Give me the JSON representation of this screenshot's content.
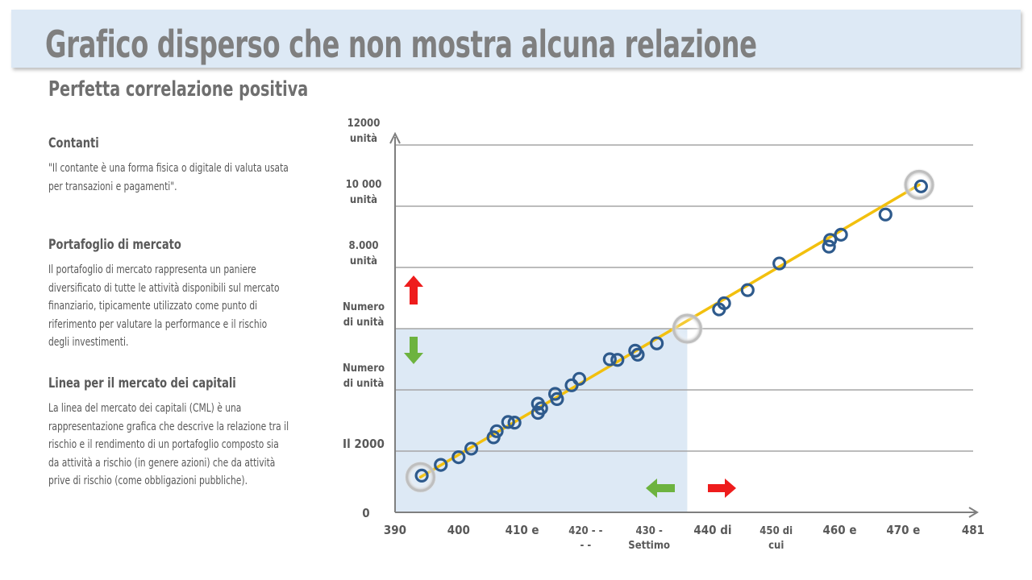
{
  "header": {
    "title": "Grafico disperso che non mostra alcuna relazione",
    "subtitle": "Perfetta correlazione positiva"
  },
  "sections": [
    {
      "heading": "Contanti",
      "body": "\"Il contante è una forma fisica o digitale di valuta usata per transazioni e pagamenti\"."
    },
    {
      "heading": "Portafoglio di mercato",
      "body": "Il portafoglio di mercato rappresenta un paniere diversificato di tutte le attività disponibili sul mercato finanziario, tipicamente utilizzato come punto di riferimento per valutare la performance e il rischio degli investimenti."
    },
    {
      "heading": "Linea per il mercato dei capitali",
      "body": "La linea del mercato dei capitali (CML) è una rappresentazione grafica che descrive la relazione tra il rischio e il rendimento di un portafoglio composto sia da attività a rischio (in genere azioni) che da attività prive di rischio (come obbligazioni pubbliche)."
    }
  ],
  "colors": {
    "line": "#f2c00e",
    "marker": "#2e5a8c",
    "grid": "#a6a6a6",
    "axis": "#7f7f7f",
    "shade": "#dde9f5",
    "arrow_up": "#ee1c1c",
    "arrow_down": "#6db33f",
    "arrow_left": "#6db33f",
    "arrow_right": "#ee1c1c"
  },
  "chart_data": {
    "type": "scatter",
    "xlim": [
      390,
      481
    ],
    "ylim": [
      0,
      12000
    ],
    "grid": "horizontal",
    "x_ticks": [
      {
        "value": 390,
        "label": [
          "390"
        ]
      },
      {
        "value": 400,
        "label": [
          "400"
        ]
      },
      {
        "value": 410,
        "label": [
          "410 e"
        ]
      },
      {
        "value": 420,
        "label": [
          "420 - -",
          "- -"
        ]
      },
      {
        "value": 430,
        "label": [
          "430 -",
          "Settimo"
        ]
      },
      {
        "value": 440,
        "label": [
          "440 di"
        ]
      },
      {
        "value": 450,
        "label": [
          "450 di",
          "cui"
        ]
      },
      {
        "value": 460,
        "label": [
          "460 e"
        ]
      },
      {
        "value": 470,
        "label": [
          "470 e"
        ]
      },
      {
        "value": 481,
        "label": [
          "481"
        ]
      }
    ],
    "y_ticks": [
      {
        "value": 0,
        "label": [
          "0"
        ]
      },
      {
        "value": 2000,
        "label": [
          "Il 2000"
        ]
      },
      {
        "value": 4000,
        "label": [
          "Numero",
          "di unità"
        ]
      },
      {
        "value": 6000,
        "label": [
          "Numero",
          "di unità"
        ]
      },
      {
        "value": 8000,
        "label": [
          "8.000",
          "unità"
        ]
      },
      {
        "value": 10000,
        "label": [
          "10 000",
          "unità"
        ]
      },
      {
        "value": 12000,
        "label": [
          "12000",
          "unità"
        ]
      }
    ],
    "trend_line": {
      "x": [
        394,
        472.5
      ],
      "y": [
        1150,
        10700
      ]
    },
    "highlighted_points": [
      {
        "x": 394,
        "y": 1150
      },
      {
        "x": 436,
        "y": 6000
      },
      {
        "x": 472.5,
        "y": 10700
      }
    ],
    "shaded_region": {
      "x": [
        390,
        436
      ],
      "y": [
        0,
        6000
      ]
    },
    "points": [
      {
        "x": 394.2,
        "y": 1200
      },
      {
        "x": 397.2,
        "y": 1550
      },
      {
        "x": 400.0,
        "y": 1800
      },
      {
        "x": 402.0,
        "y": 2080
      },
      {
        "x": 405.5,
        "y": 2450
      },
      {
        "x": 406.0,
        "y": 2650
      },
      {
        "x": 407.8,
        "y": 2950
      },
      {
        "x": 408.8,
        "y": 2930
      },
      {
        "x": 412.5,
        "y": 3250
      },
      {
        "x": 412.5,
        "y": 3550
      },
      {
        "x": 413.0,
        "y": 3400
      },
      {
        "x": 415.2,
        "y": 3870
      },
      {
        "x": 415.5,
        "y": 3700
      },
      {
        "x": 417.8,
        "y": 4150
      },
      {
        "x": 419.0,
        "y": 4360
      },
      {
        "x": 423.8,
        "y": 5000
      },
      {
        "x": 425.0,
        "y": 4980
      },
      {
        "x": 427.8,
        "y": 5280
      },
      {
        "x": 428.2,
        "y": 5150
      },
      {
        "x": 431.2,
        "y": 5520
      },
      {
        "x": 441.0,
        "y": 6630
      },
      {
        "x": 441.8,
        "y": 6830
      },
      {
        "x": 445.5,
        "y": 7260
      },
      {
        "x": 450.5,
        "y": 8130
      },
      {
        "x": 458.3,
        "y": 8680
      },
      {
        "x": 458.5,
        "y": 8900
      },
      {
        "x": 460.2,
        "y": 9070
      },
      {
        "x": 467.2,
        "y": 9730
      },
      {
        "x": 472.8,
        "y": 10650
      }
    ]
  }
}
